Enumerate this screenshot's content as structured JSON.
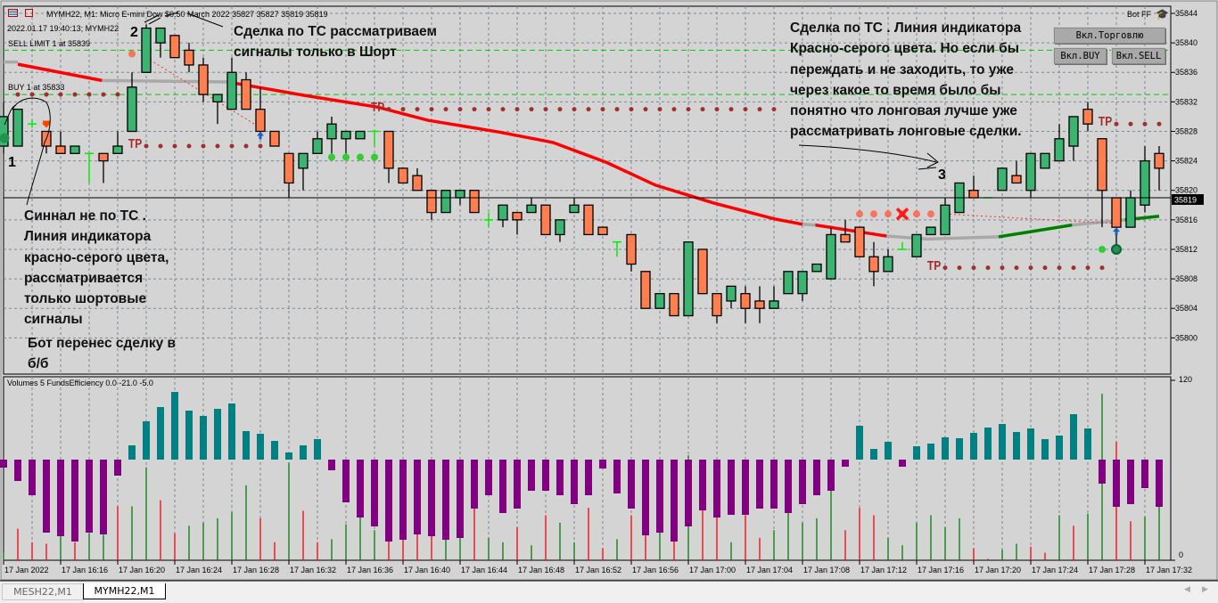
{
  "header": {
    "symbol_line": "MYMH22, M1:  Micro E-mini Dow $0.50 March 2022  35827 35827 35819 35819",
    "datetime_line": "2022.01.17 19:40:13; MYMH22",
    "sell_limit_label": "SELL LIMIT 1 at 35839",
    "buy_label": "BUY 1 at 35833",
    "bot_name": "Bot FF"
  },
  "buttons": {
    "trade": "Вкл.Торговлю",
    "buy": "Вкл.BUY",
    "sell": "Вкл.SELL"
  },
  "annotations": {
    "marker_1": "1",
    "marker_2": "2",
    "marker_3": "3",
    "top_note": [
      "Сделка по ТС  рассматриваем",
      "сигналы только в Шорт"
    ],
    "left_note": [
      "Синнал не по ТС .",
      "Линия индикатора",
      "красно-серого цвета,",
      "рассматривается",
      "только шортовые",
      "сигналы"
    ],
    "bot_note": [
      "Бот перенес сделку в",
      "б/б"
    ],
    "right_note": [
      "Сделка по ТС . Линия индикатора",
      "Красно-серого цвета. Но если бы",
      "переждать и не заходить, то уже",
      "через какое то время было бы",
      "понятно что лонговая лучше уже",
      "рассматривать лонговые сделки."
    ],
    "tp_label": "TP"
  },
  "indicator": {
    "label": "Volumes 5 FundsEfficiency 0.0 -21.0 -5.0",
    "axis_max": "120",
    "axis_min": "0"
  },
  "tabs": [
    {
      "label": "MESH22,M1",
      "active": false
    },
    {
      "label": "MYMH22,M1",
      "active": true
    }
  ],
  "colors": {
    "background": "#d4d4d4",
    "bull": "#3cb371",
    "bear": "#ff7f50",
    "hist_pos": "#008080",
    "hist_neg": "#800080",
    "vol_up": "#008000",
    "vol_down": "#ff0000",
    "level_green": "#00cc00",
    "tp_dots": "#a52a2a"
  },
  "chart_data": {
    "type": "candlestick",
    "symbol": "MYMH22",
    "timeframe": "M1",
    "current_price": "35819",
    "price_ticks": [
      "35844",
      "35840",
      "35836",
      "35832",
      "35828",
      "35824",
      "35820",
      "35816",
      "35812",
      "35808",
      "35804",
      "35800"
    ],
    "time_labels": [
      "17 Jan 2022",
      "17 Jan 16:16",
      "17 Jan 16:20",
      "17 Jan 16:24",
      "17 Jan 16:28",
      "17 Jan 16:32",
      "17 Jan 16:36",
      "17 Jan 16:40",
      "17 Jan 16:44",
      "17 Jan 16:48",
      "17 Jan 16:52",
      "17 Jan 16:56",
      "17 Jan 17:00",
      "17 Jan 17:04",
      "17 Jan 17:08",
      "17 Jan 17:12",
      "17 Jan 17:16",
      "17 Jan 17:20",
      "17 Jan 17:24",
      "17 Jan 17:28",
      "17 Jan 17:32"
    ],
    "first_bar_time": "16:12",
    "ohlc": [
      [
        35826,
        35832,
        35825,
        35830
      ],
      [
        35826,
        35831,
        35826,
        35831
      ],
      [
        35829,
        35829.5,
        35828.5,
        35829
      ],
      [
        35828,
        35828,
        35825,
        35826
      ],
      [
        35826,
        35828,
        35825,
        35825
      ],
      [
        35825,
        35826,
        35825,
        35826
      ],
      [
        35825,
        35825,
        35821,
        35825
      ],
      [
        35825,
        35825,
        35821,
        35824
      ],
      [
        35825,
        35828,
        35825,
        35826
      ],
      [
        35828,
        35836,
        35828,
        35834
      ],
      [
        35836,
        35842.5,
        35836,
        35842
      ],
      [
        35840,
        35842,
        35838,
        35842
      ],
      [
        35841,
        35841,
        35838,
        35838
      ],
      [
        35839,
        35840,
        35836,
        35837
      ],
      [
        35837,
        35838,
        35832,
        35833
      ],
      [
        35832,
        35833,
        35829,
        35833
      ],
      [
        35831,
        35838,
        35831,
        35836
      ],
      [
        35835,
        35836,
        35831,
        35831
      ],
      [
        35831,
        35834,
        35828,
        35828
      ],
      [
        35828,
        35828,
        35826,
        35826
      ],
      [
        35825,
        35825,
        35819,
        35821
      ],
      [
        35823,
        35825,
        35820,
        35825
      ],
      [
        35825,
        35828,
        35825,
        35827
      ],
      [
        35827,
        35830,
        35825,
        35829
      ],
      [
        35827,
        35828,
        35825,
        35828
      ],
      [
        35827,
        35828,
        35827,
        35828
      ],
      [
        35828,
        35828,
        35826,
        35828
      ],
      [
        35828,
        35828,
        35821,
        35823
      ],
      [
        35823,
        35823,
        35821,
        35821
      ],
      [
        35822,
        35823,
        35820,
        35820
      ],
      [
        35820,
        35820,
        35816,
        35817
      ],
      [
        35817,
        35820,
        35817,
        35820
      ],
      [
        35819,
        35820,
        35818,
        35820
      ],
      [
        35820,
        35820,
        35817,
        35817
      ],
      [
        35816,
        35817,
        35815,
        35816
      ],
      [
        35816,
        35818,
        35815,
        35818
      ],
      [
        35817,
        35817,
        35814,
        35816
      ],
      [
        35817,
        35819,
        35817,
        35818
      ],
      [
        35818,
        35818,
        35814,
        35814
      ],
      [
        35814,
        35816,
        35813,
        35816
      ],
      [
        35817,
        35819,
        35817,
        35818
      ],
      [
        35818,
        35818,
        35814,
        35814
      ],
      [
        35815,
        35815,
        35814,
        35814
      ],
      [
        35813,
        35813,
        35811,
        35813
      ],
      [
        35814,
        35814,
        35809,
        35810
      ],
      [
        35809,
        35809,
        35804,
        35804
      ],
      [
        35804,
        35806,
        35804,
        35806
      ],
      [
        35806,
        35806,
        35803,
        35803
      ],
      [
        35803,
        35813,
        35803,
        35813
      ],
      [
        35812,
        35812,
        35806,
        35806
      ],
      [
        35806,
        35806,
        35802,
        35803
      ],
      [
        35805,
        35807,
        35804,
        35807
      ],
      [
        35806,
        35807,
        35802,
        35804
      ],
      [
        35805,
        35807,
        35802,
        35804
      ],
      [
        35804,
        35807,
        35804,
        35805
      ],
      [
        35806,
        35809,
        35806,
        35809
      ],
      [
        35806,
        35809,
        35805,
        35809
      ],
      [
        35809,
        35810,
        35809,
        35810
      ],
      [
        35808,
        35815,
        35808,
        35814
      ],
      [
        35814,
        35816,
        35813,
        35813
      ],
      [
        35815,
        35815,
        35811,
        35811
      ],
      [
        35811,
        35813,
        35807,
        35809
      ],
      [
        35809,
        35812,
        35809,
        35811
      ],
      [
        35812,
        35813,
        35812,
        35812
      ],
      [
        35811,
        35814,
        35811,
        35814
      ],
      [
        35814,
        35815,
        35814,
        35815
      ],
      [
        35814,
        35819,
        35814,
        35818
      ],
      [
        35817,
        35821,
        35817,
        35821
      ],
      [
        35820,
        35822,
        35819,
        35819
      ],
      [
        35819,
        35819,
        35819,
        35819
      ],
      [
        35820,
        35823,
        35820,
        35823
      ],
      [
        35822,
        35824,
        35821,
        35821
      ],
      [
        35820,
        35825,
        35819,
        35825
      ],
      [
        35823,
        35825,
        35823,
        35825
      ],
      [
        35824,
        35829,
        35824,
        35827
      ],
      [
        35826,
        35830,
        35824,
        35830
      ],
      [
        35831,
        35832,
        35828,
        35829
      ],
      [
        35827,
        35827,
        35815,
        35820
      ],
      [
        35819,
        35819,
        35812,
        35815
      ],
      [
        35815,
        35820,
        35815,
        35819
      ],
      [
        35818,
        35826,
        35817,
        35824
      ],
      [
        35825,
        35826,
        35820,
        35823
      ]
    ],
    "ma_segments": [
      {
        "color": "gray",
        "points": [
          [
            0,
            35837.4
          ],
          [
            1,
            35837.4
          ]
        ]
      },
      {
        "color": "red",
        "points": [
          [
            1,
            35837.1
          ],
          [
            6.9,
            35834.9
          ]
        ]
      },
      {
        "color": "gray",
        "points": [
          [
            6.9,
            35834.9
          ],
          [
            16,
            35834.7
          ]
        ]
      },
      {
        "color": "red",
        "points": [
          [
            16,
            35834.6
          ],
          [
            21,
            35832.9
          ],
          [
            26.2,
            35831.3
          ],
          [
            29.75,
            35829.5
          ],
          [
            34.75,
            35827.9
          ],
          [
            38.5,
            35826.5
          ],
          [
            42.25,
            35823.8
          ],
          [
            45.7,
            35820.7
          ],
          [
            49.75,
            35818.3
          ],
          [
            54.1,
            35816.1
          ],
          [
            56,
            35815.4
          ]
        ]
      },
      {
        "color": "gray",
        "points": [
          [
            56,
            35815.4
          ],
          [
            56.9,
            35815.3
          ]
        ]
      },
      {
        "color": "red",
        "points": [
          [
            56.9,
            35815.3
          ],
          [
            61.9,
            35813.8
          ]
        ]
      },
      {
        "color": "gray",
        "points": [
          [
            61.9,
            35813.8
          ],
          [
            64.75,
            35813.4
          ],
          [
            69.75,
            35813.7
          ]
        ]
      },
      {
        "color": "green",
        "points": [
          [
            69.75,
            35813.7
          ],
          [
            74.9,
            35815.3
          ]
        ]
      },
      {
        "color": "gray",
        "points": [
          [
            74.9,
            35815.3
          ],
          [
            78.6,
            35816
          ]
        ]
      },
      {
        "color": "green",
        "points": [
          [
            78.6,
            35816
          ],
          [
            81,
            35816.5
          ]
        ]
      }
    ],
    "order_levels": [
      {
        "kind": "sell_limit",
        "price": 35839
      },
      {
        "kind": "buy",
        "price": 35833
      }
    ],
    "dot_levels": [
      {
        "color": "tp",
        "price": 35833,
        "from": 1,
        "to": 8
      },
      {
        "color": "tp",
        "price": 35826,
        "from": 10,
        "to": 18,
        "tp_at": 9
      },
      {
        "color": "tp",
        "price": 35831,
        "from": 27,
        "to": 54,
        "tp_at": 26
      },
      {
        "color": "tp",
        "price": 35829,
        "from": 78,
        "to": 81,
        "tp_at": 77
      },
      {
        "color": "tp",
        "price": 35809.5,
        "from": 66,
        "to": 77,
        "tp_at": 65
      },
      {
        "color": "lime",
        "price": 35824.5,
        "from": 23,
        "to": 27
      },
      {
        "color": "lime",
        "price": 35812,
        "from": 77,
        "to": 78
      },
      {
        "color": "salmon",
        "price": 35838.5,
        "from": 9,
        "to": 9
      },
      {
        "color": "salmon",
        "price": 35816.8,
        "from": 60,
        "to": 65
      }
    ],
    "trade_lines": [
      {
        "from": [
          10,
          35838
        ],
        "to": [
          18,
          35828.5
        ]
      },
      {
        "from": [
          66,
          35816.8
        ],
        "to": [
          78,
          35815.5
        ]
      }
    ],
    "cancel_mark": {
      "index": 63,
      "price": 35816.8
    },
    "funds_efficiency": [
      -9,
      -24,
      -40,
      -82,
      -86,
      -92,
      -82,
      -84,
      -18,
      16,
      43,
      59,
      76,
      55,
      49,
      57,
      63,
      32,
      29,
      21,
      8,
      16,
      23,
      -12,
      -48,
      -65,
      -75,
      -92,
      -90,
      -84,
      -86,
      -90,
      -88,
      -55,
      -40,
      -60,
      -55,
      -35,
      -35,
      -40,
      -50,
      -40,
      -10,
      -38,
      -55,
      -85,
      -82,
      -92,
      -75,
      -57,
      -65,
      -62,
      -62,
      -55,
      -55,
      -60,
      -50,
      -40,
      -35,
      -8,
      38,
      12,
      20,
      -8,
      15,
      18,
      25,
      24,
      30,
      36,
      40,
      31,
      35,
      23,
      27,
      51,
      35,
      -27,
      -53,
      -50,
      -32,
      -53
    ],
    "volumes": [
      5,
      21,
      12,
      11,
      16,
      12,
      18,
      17,
      36,
      36,
      62,
      40,
      18,
      23,
      25,
      28,
      32,
      50,
      28,
      12,
      65,
      33,
      12,
      14,
      24,
      30,
      20,
      45,
      20,
      28,
      40,
      25,
      18,
      35,
      15,
      12,
      22,
      10,
      30,
      25,
      12,
      35,
      8,
      14,
      30,
      60,
      40,
      30,
      70,
      50,
      45,
      12,
      30,
      15,
      20,
      45,
      25,
      28,
      50,
      20,
      35,
      30,
      15,
      10,
      25,
      30,
      22,
      28,
      8,
      1,
      7,
      11,
      9,
      5,
      30,
      23,
      31,
      111,
      79,
      26,
      29,
      36
    ],
    "volume_dirs": "grrrgrggrggrrgggggrrgrrggggrrrrggrggrgrggrrgrrgrgrrgrrgggggrrrggggggrrggrrgrggrrgg",
    "volume_range": [
      0,
      120
    ]
  }
}
